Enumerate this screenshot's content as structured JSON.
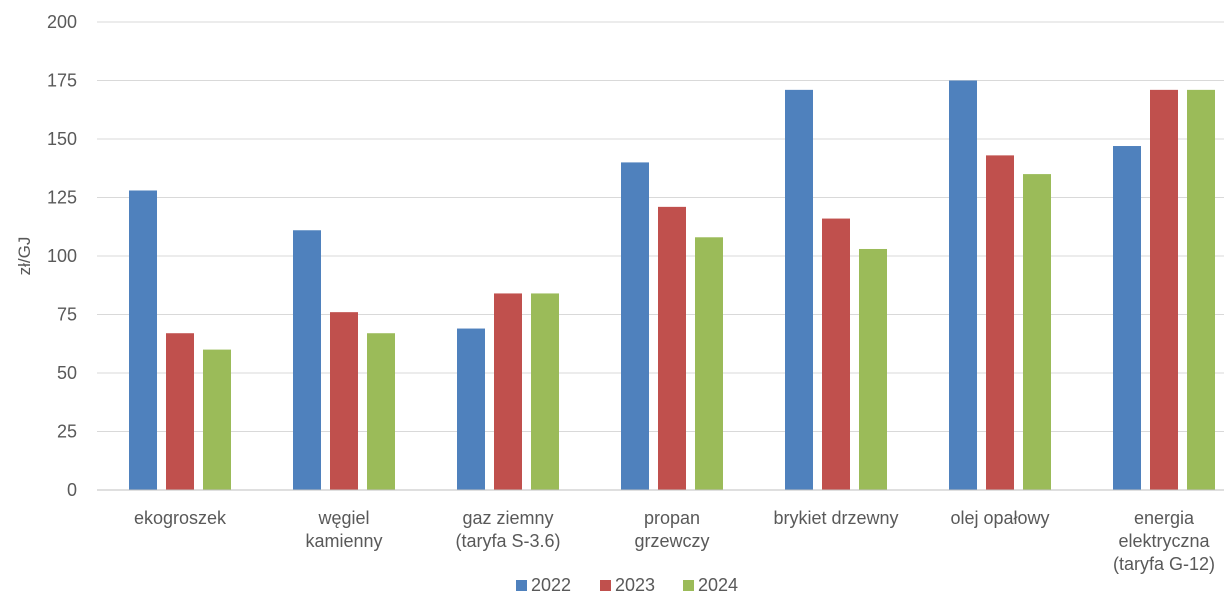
{
  "chart_data": {
    "type": "bar",
    "title": "",
    "xlabel": "",
    "ylabel": "zł/GJ",
    "ylim": [
      0,
      200
    ],
    "yticks": [
      0,
      25,
      50,
      75,
      100,
      125,
      150,
      175,
      200
    ],
    "grid": true,
    "legend_position": "bottom",
    "categories": [
      [
        "ekogroszek"
      ],
      [
        "węgiel",
        "kamienny"
      ],
      [
        "gaz ziemny",
        "(taryfa S-3.6)"
      ],
      [
        "propan",
        "grzewczy"
      ],
      [
        "brykiet drzewny"
      ],
      [
        "olej opałowy"
      ],
      [
        "energia",
        "elektryczna",
        "(taryfa G-12)"
      ]
    ],
    "series": [
      {
        "name": "2022",
        "color": "#4f81bd",
        "values": [
          128,
          111,
          69,
          140,
          171,
          175,
          147
        ]
      },
      {
        "name": "2023",
        "color": "#c0504d",
        "values": [
          67,
          76,
          84,
          121,
          116,
          143,
          171
        ]
      },
      {
        "name": "2024",
        "color": "#9bbb59",
        "values": [
          60,
          67,
          84,
          108,
          103,
          135,
          171
        ]
      }
    ]
  }
}
